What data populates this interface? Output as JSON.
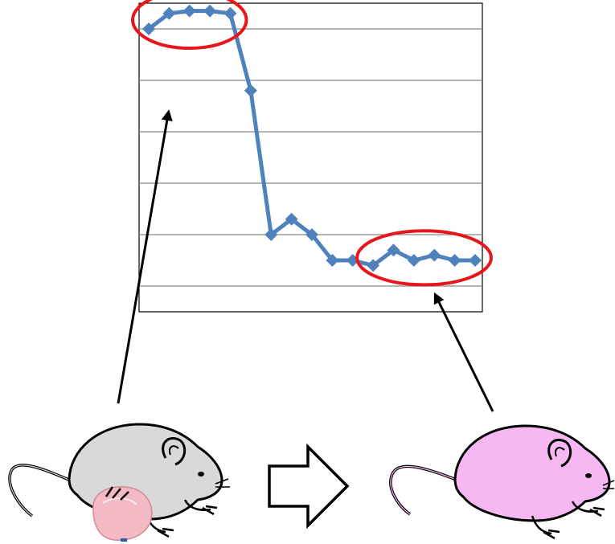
{
  "chart_data": {
    "type": "line",
    "x": [
      1,
      2,
      3,
      4,
      5,
      6,
      7,
      8,
      9,
      10,
      11,
      12,
      13,
      14,
      15,
      16,
      17
    ],
    "series": [
      {
        "values": [
          100,
          103,
          103.5,
          103.5,
          103,
          88,
          60,
          63,
          60,
          55,
          55,
          54,
          57,
          55,
          56,
          55,
          55
        ]
      }
    ],
    "ylim": [
      45,
      105
    ],
    "grid": true,
    "legend": "none",
    "highlights": [
      {
        "from_index": 0,
        "to_index": 4,
        "color": "#e8161b"
      },
      {
        "from_index": 11,
        "to_index": 16,
        "color": "#e8161b"
      }
    ],
    "colors": {
      "line": "#4f81bd",
      "marker": "#4f81bd",
      "highlight": "#e8161b",
      "grid": "#888888"
    }
  },
  "diagram": {
    "mouse_before": {
      "color": "#d9d9d9",
      "outline": "#000000",
      "icon": "mouse-icon"
    },
    "mouse_after": {
      "color": "#f5b8f2",
      "outline": "#000000",
      "icon": "mouse-icon"
    },
    "tumor": {
      "color": "#f3b9c4",
      "icon": "tumor-icon"
    },
    "transition_arrow": {
      "icon": "right-arrow-icon",
      "fill": "#ffffff",
      "outline": "#000000"
    }
  }
}
